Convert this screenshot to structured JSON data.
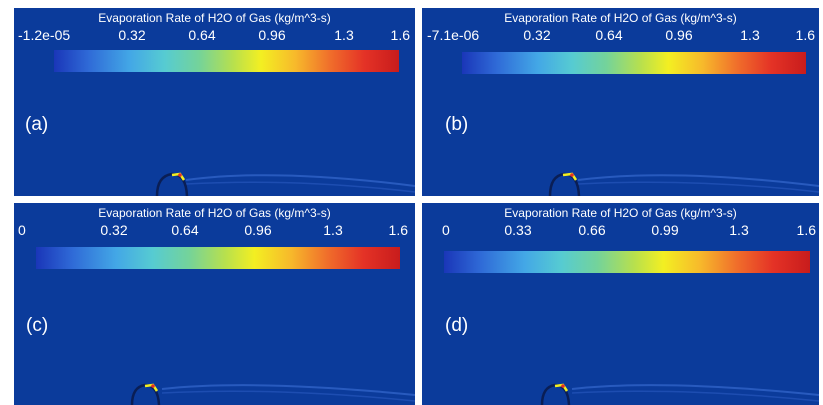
{
  "colors": {
    "background": "#0b3b9b",
    "text": "#ffffff",
    "divider": "#ffffff"
  },
  "panels": [
    {
      "id": "a",
      "label": "(a)",
      "title": "Evaporation Rate of H2O of Gas (kg/m^3-s)",
      "ticks": [
        "-1.2e-05",
        "0.32",
        "0.64",
        "0.96",
        "1.3",
        "1.6"
      ]
    },
    {
      "id": "b",
      "label": "(b)",
      "title": "Evaporation Rate of H2O of Gas (kg/m^3-s)",
      "ticks": [
        "-7.1e-06",
        "0.32",
        "0.64",
        "0.96",
        "1.3",
        "1.6"
      ]
    },
    {
      "id": "c",
      "label": "(c)",
      "title": "Evaporation Rate of H2O of Gas (kg/m^3-s)",
      "ticks": [
        "0",
        "0.32",
        "0.64",
        "0.96",
        "1.3",
        "1.6"
      ]
    },
    {
      "id": "d",
      "label": "(d)",
      "title": "Evaporation Rate of H2O of Gas (kg/m^3-s)",
      "ticks": [
        "0",
        "0.33",
        "0.66",
        "0.99",
        "1.3",
        "1.6"
      ]
    }
  ]
}
